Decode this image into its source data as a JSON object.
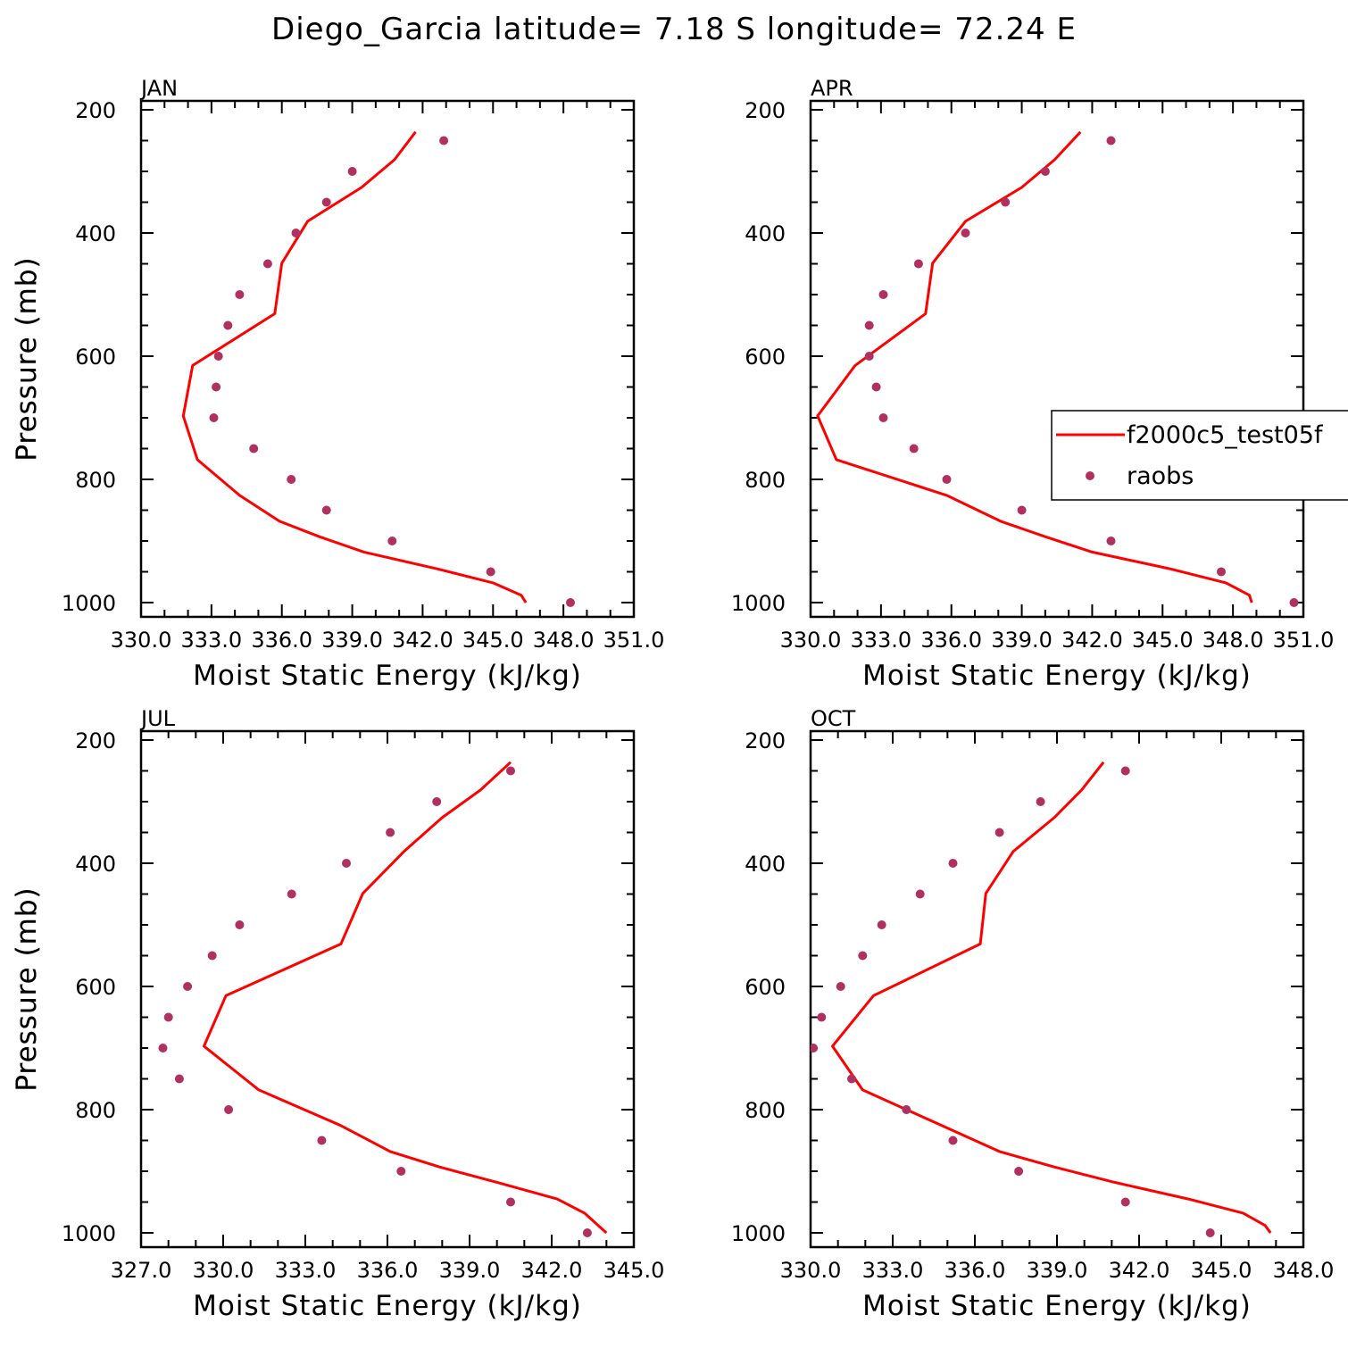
{
  "page_title": "Diego_Garcia  latitude= 7.18 S longitude= 72.24 E",
  "legend": {
    "model_label": "f2000c5_test05f",
    "obs_label": "raobs",
    "colors": {
      "model": "#ff0000",
      "obs": "#b03060"
    }
  },
  "chart_data": [
    {
      "type": "line",
      "panel_label": "JAN",
      "xlabel": "Moist Static Energy (kJ/kg)",
      "ylabel": "Pressure (mb)",
      "xlim": [
        330,
        351
      ],
      "ylim": [
        1000,
        200
      ],
      "x_tick_labels": [
        "330.0",
        "333.0",
        "336.0",
        "339.0",
        "342.0",
        "345.0",
        "348.0",
        "351.0"
      ],
      "y_tick_labels": [
        "200",
        "400",
        "600",
        "800",
        "1000"
      ],
      "series": [
        {
          "name": "f2000c5_test05f",
          "style": "line",
          "pressure": [
            236,
            281,
            326,
            381,
            449,
            531,
            615,
            697,
            768,
            826,
            868,
            893,
            918,
            945,
            968,
            988,
            1000
          ],
          "mse": [
            341.7,
            340.8,
            339.4,
            337.1,
            336.0,
            335.7,
            332.2,
            331.8,
            332.4,
            334.2,
            335.9,
            337.6,
            339.5,
            342.6,
            345.0,
            346.2,
            346.4
          ]
        },
        {
          "name": "raobs",
          "style": "points",
          "pressure": [
            250,
            300,
            350,
            400,
            450,
            500,
            550,
            600,
            650,
            700,
            750,
            800,
            850,
            900,
            950,
            1000
          ],
          "mse": [
            342.9,
            339.0,
            337.9,
            336.6,
            335.4,
            334.2,
            333.7,
            333.3,
            333.2,
            333.1,
            334.8,
            336.4,
            337.9,
            340.7,
            344.9,
            348.3
          ]
        }
      ]
    },
    {
      "type": "line",
      "panel_label": "APR",
      "xlabel": "Moist Static Energy (kJ/kg)",
      "ylabel": "Pressure (mb)",
      "xlim": [
        330,
        351
      ],
      "ylim": [
        1000,
        200
      ],
      "x_tick_labels": [
        "330.0",
        "333.0",
        "336.0",
        "339.0",
        "342.0",
        "345.0",
        "348.0",
        "351.0"
      ],
      "y_tick_labels": [
        "200",
        "400",
        "600",
        "800",
        "1000"
      ],
      "series": [
        {
          "name": "f2000c5_test05f",
          "style": "line",
          "pressure": [
            236,
            281,
            326,
            381,
            449,
            531,
            615,
            697,
            768,
            826,
            868,
            893,
            918,
            945,
            968,
            988,
            1000
          ],
          "mse": [
            341.5,
            340.4,
            339.0,
            336.6,
            335.2,
            334.9,
            331.9,
            330.3,
            331.1,
            335.8,
            338.1,
            340.0,
            342.0,
            345.3,
            347.7,
            348.7,
            348.8
          ]
        },
        {
          "name": "raobs",
          "style": "points",
          "pressure": [
            250,
            300,
            350,
            400,
            450,
            500,
            550,
            600,
            650,
            700,
            750,
            800,
            850,
            900,
            950,
            1000
          ],
          "mse": [
            342.8,
            340.0,
            338.3,
            336.6,
            334.6,
            333.1,
            332.5,
            332.5,
            332.8,
            333.1,
            334.4,
            335.8,
            339.0,
            342.8,
            347.5,
            350.6
          ]
        }
      ]
    },
    {
      "type": "line",
      "panel_label": "JUL",
      "xlabel": "Moist Static Energy (kJ/kg)",
      "ylabel": "Pressure (mb)",
      "xlim": [
        327,
        345
      ],
      "ylim": [
        1000,
        200
      ],
      "x_tick_labels": [
        "327.0",
        "330.0",
        "333.0",
        "336.0",
        "339.0",
        "342.0",
        "345.0"
      ],
      "y_tick_labels": [
        "200",
        "400",
        "600",
        "800",
        "1000"
      ],
      "series": [
        {
          "name": "f2000c5_test05f",
          "style": "line",
          "pressure": [
            236,
            281,
            326,
            381,
            449,
            531,
            615,
            697,
            768,
            826,
            868,
            893,
            918,
            945,
            968,
            988,
            1000
          ],
          "mse": [
            340.5,
            339.4,
            338.0,
            336.6,
            335.1,
            334.3,
            330.1,
            329.3,
            331.3,
            334.3,
            336.1,
            337.9,
            340.0,
            342.2,
            343.2,
            343.7,
            344.0
          ]
        },
        {
          "name": "raobs",
          "style": "points",
          "pressure": [
            250,
            300,
            350,
            400,
            450,
            500,
            550,
            600,
            650,
            700,
            750,
            800,
            850,
            900,
            950,
            1000
          ],
          "mse": [
            340.5,
            337.8,
            336.1,
            334.5,
            332.5,
            330.6,
            329.6,
            328.7,
            328.0,
            327.8,
            328.4,
            330.2,
            333.6,
            336.5,
            340.5,
            343.3
          ]
        }
      ]
    },
    {
      "type": "line",
      "panel_label": "OCT",
      "xlabel": "Moist Static Energy (kJ/kg)",
      "ylabel": "Pressure (mb)",
      "xlim": [
        330,
        348
      ],
      "ylim": [
        1000,
        200
      ],
      "x_tick_labels": [
        "330.0",
        "333.0",
        "336.0",
        "339.0",
        "342.0",
        "345.0",
        "348.0"
      ],
      "y_tick_labels": [
        "200",
        "400",
        "600",
        "800",
        "1000"
      ],
      "series": [
        {
          "name": "f2000c5_test05f",
          "style": "line",
          "pressure": [
            236,
            281,
            326,
            381,
            449,
            531,
            615,
            697,
            768,
            826,
            868,
            893,
            918,
            945,
            968,
            988,
            1000
          ],
          "mse": [
            340.7,
            339.9,
            338.9,
            337.4,
            336.4,
            336.2,
            332.3,
            330.8,
            331.9,
            334.8,
            336.9,
            338.9,
            341.1,
            343.8,
            345.8,
            346.6,
            346.8
          ]
        },
        {
          "name": "raobs",
          "style": "points",
          "pressure": [
            250,
            300,
            350,
            400,
            450,
            500,
            550,
            600,
            650,
            700,
            750,
            800,
            850,
            900,
            950,
            1000
          ],
          "mse": [
            341.5,
            338.4,
            336.9,
            335.2,
            334.0,
            332.6,
            331.9,
            331.1,
            330.4,
            330.1,
            331.5,
            333.5,
            335.2,
            337.6,
            341.5,
            344.6
          ]
        }
      ]
    }
  ]
}
